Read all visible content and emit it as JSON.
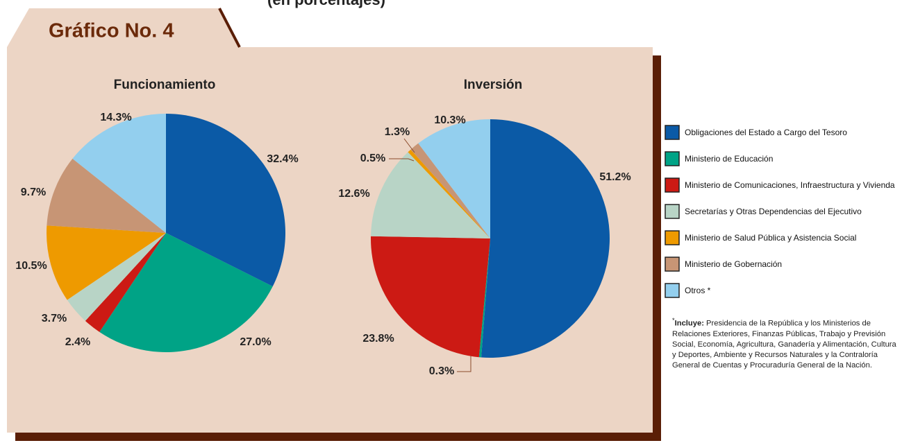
{
  "tab_label": "Gráfico No. 4",
  "subtitle": "(en porcentajes)",
  "legend": {
    "items": [
      {
        "name": "Obligaciones del Estado a Cargo del Tesoro",
        "color": "#0b5aa6"
      },
      {
        "name": "Ministerio de Educación",
        "color": "#00a386"
      },
      {
        "name": "Ministerio  de Comunicaciones, Infraestructura y Vivienda",
        "color": "#cc1a14"
      },
      {
        "name": "Secretarías y Otras Dependencias del Ejecutivo",
        "color": "#b8d4c6"
      },
      {
        "name": "Ministerio de Salud Pública y Asistencia Social",
        "color": "#ee9a00"
      },
      {
        "name": "Ministerio de Gobernación",
        "color": "#c79575"
      },
      {
        "name": "Otros *",
        "color": "#93cfee"
      }
    ]
  },
  "footnote": {
    "marker": "*",
    "label": "Incluye:",
    "text": "Presidencia de la República y los Ministerios de Relaciones Exteriores, Finanzas Públicas, Trabajo y Previsión Social, Economía, Agricultura, Ganadería y Alimentación, Cultura y Deportes, Ambiente y Recursos Naturales y la Contraloría General de Cuentas y Procuraduría General de la Nación."
  },
  "chart_data": [
    {
      "type": "pie",
      "title": "Funcionamiento",
      "values": [
        32.4,
        27.0,
        2.4,
        3.7,
        10.5,
        9.7,
        14.3
      ],
      "value_labels": [
        "32.4%",
        "27.0%",
        "2.4%",
        "3.7%",
        "10.5%",
        "9.7%",
        "14.3%"
      ]
    },
    {
      "type": "pie",
      "title": "Inversión",
      "values": [
        51.2,
        0.3,
        23.8,
        12.6,
        0.5,
        1.3,
        10.3
      ],
      "value_labels": [
        "51.2%",
        "0.3%",
        "23.8%",
        "12.6%",
        "0.5%",
        "1.3%",
        "10.3%"
      ]
    }
  ]
}
